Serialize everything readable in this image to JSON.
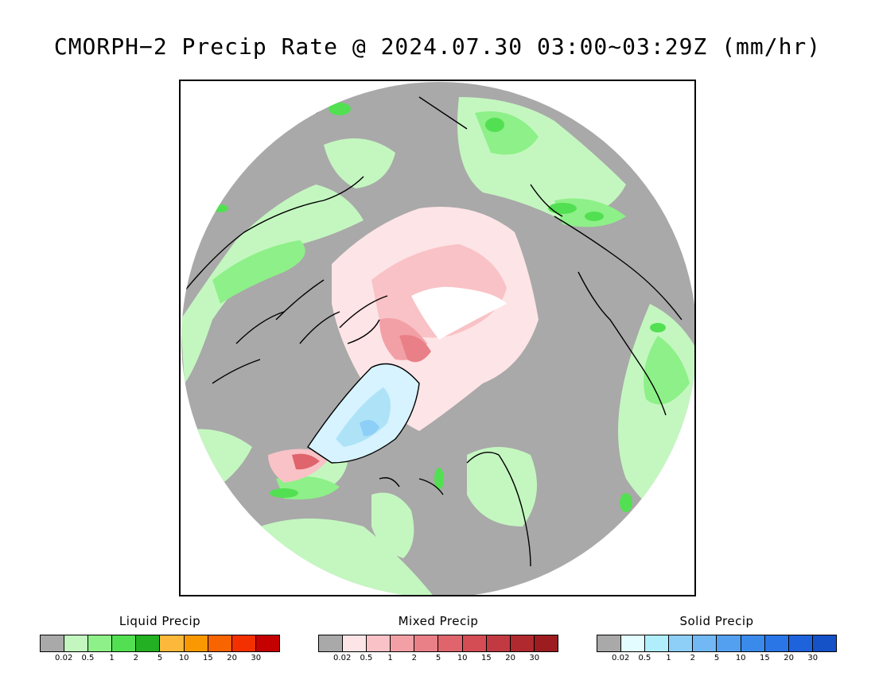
{
  "title": "CMORPH−2 Precip Rate @ 2024.07.30 03:00~03:29Z (mm/hr)",
  "map": {
    "projection": "north-polar-stereographic",
    "colors": {
      "background": "#a9a9a9",
      "land_outline": "#000000",
      "ice_cap_light": "#d6f3ff",
      "ice_cap_mid": "#aee3f7",
      "pole_gap": "#ffffff"
    }
  },
  "legends": [
    {
      "id": "liquid",
      "title": "Liquid Precip",
      "colors": [
        "#a9a9a9",
        "#c4f7c0",
        "#8ef088",
        "#52e052",
        "#23b023",
        "#fbb83a",
        "#f99800",
        "#f86400",
        "#f33000",
        "#c40000"
      ],
      "ticks": [
        "0.02",
        "0.5",
        "1",
        "2",
        "5",
        "10",
        "15",
        "20",
        "30"
      ]
    },
    {
      "id": "mixed",
      "title": "Mixed Precip",
      "colors": [
        "#a9a9a9",
        "#fde4e6",
        "#f9c2c6",
        "#f2a0a6",
        "#e98087",
        "#df646c",
        "#d44d55",
        "#c23a41",
        "#b0292e",
        "#9c1c20"
      ],
      "ticks": [
        "0.02",
        "0.5",
        "1",
        "2",
        "5",
        "10",
        "15",
        "20",
        "30"
      ]
    },
    {
      "id": "solid",
      "title": "Solid Precip",
      "colors": [
        "#a9a9a9",
        "#e2fcff",
        "#b0eefc",
        "#8ecff8",
        "#72b8f4",
        "#54a0f0",
        "#3a8aec",
        "#2a76e6",
        "#1f63dc",
        "#1552c8"
      ],
      "ticks": [
        "0.02",
        "0.5",
        "1",
        "2",
        "5",
        "10",
        "15",
        "20",
        "30"
      ]
    }
  ]
}
